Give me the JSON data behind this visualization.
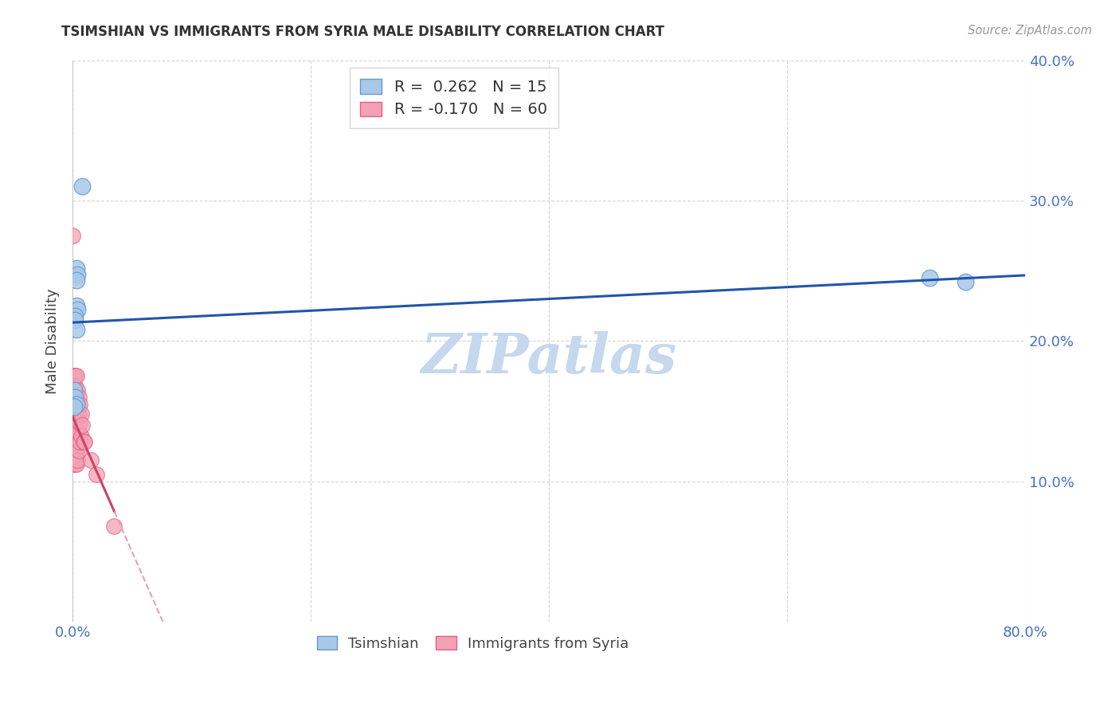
{
  "title": "TSIMSHIAN VS IMMIGRANTS FROM SYRIA MALE DISABILITY CORRELATION CHART",
  "source": "Source: ZipAtlas.com",
  "ylabel": "Male Disability",
  "xlim": [
    0.0,
    0.8
  ],
  "ylim": [
    0.0,
    0.4
  ],
  "x_ticks": [
    0.0,
    0.2,
    0.4,
    0.6,
    0.8
  ],
  "x_tick_labels": [
    "0.0%",
    "",
    "",
    "",
    "80.0%"
  ],
  "y_ticks": [
    0.0,
    0.1,
    0.2,
    0.3,
    0.4
  ],
  "y_right_tick_labels": [
    "",
    "10.0%",
    "20.0%",
    "30.0%",
    "40.0%"
  ],
  "tsimshian_color": "#A8C8E8",
  "tsimshian_edge_color": "#6699CC",
  "syria_color": "#F4A0B5",
  "syria_edge_color": "#E06080",
  "trend_blue_color": "#2255AA",
  "trend_pink_solid_color": "#CC4466",
  "trend_pink_dashed_color": "#E8A0B8",
  "R_tsimshian": 0.262,
  "N_tsimshian": 15,
  "R_syria": -0.17,
  "N_syria": 60,
  "tsimshian_x": [
    0.003,
    0.004,
    0.003,
    0.008,
    0.003,
    0.004,
    0.002,
    0.002,
    0.003,
    0.001,
    0.002,
    0.003,
    0.001,
    0.72,
    0.75
  ],
  "tsimshian_y": [
    0.252,
    0.247,
    0.243,
    0.31,
    0.225,
    0.222,
    0.218,
    0.215,
    0.208,
    0.165,
    0.16,
    0.155,
    0.153,
    0.245,
    0.242
  ],
  "syria_x": [
    0.0,
    0.0,
    0.0,
    0.0,
    0.0,
    0.0,
    0.0,
    0.001,
    0.001,
    0.001,
    0.001,
    0.001,
    0.001,
    0.001,
    0.001,
    0.001,
    0.001,
    0.001,
    0.001,
    0.001,
    0.001,
    0.001,
    0.002,
    0.002,
    0.002,
    0.002,
    0.002,
    0.002,
    0.002,
    0.002,
    0.002,
    0.003,
    0.003,
    0.003,
    0.003,
    0.003,
    0.003,
    0.003,
    0.003,
    0.004,
    0.004,
    0.004,
    0.004,
    0.004,
    0.004,
    0.005,
    0.005,
    0.005,
    0.005,
    0.006,
    0.006,
    0.006,
    0.007,
    0.007,
    0.008,
    0.009,
    0.01,
    0.015,
    0.02,
    0.035
  ],
  "syria_y": [
    0.275,
    0.14,
    0.13,
    0.126,
    0.122,
    0.118,
    0.112,
    0.175,
    0.165,
    0.16,
    0.155,
    0.148,
    0.14,
    0.138,
    0.135,
    0.132,
    0.128,
    0.125,
    0.122,
    0.12,
    0.118,
    0.115,
    0.175,
    0.168,
    0.155,
    0.148,
    0.138,
    0.132,
    0.125,
    0.118,
    0.112,
    0.175,
    0.162,
    0.155,
    0.148,
    0.138,
    0.132,
    0.122,
    0.112,
    0.165,
    0.155,
    0.148,
    0.132,
    0.125,
    0.115,
    0.16,
    0.148,
    0.135,
    0.122,
    0.155,
    0.142,
    0.128,
    0.148,
    0.132,
    0.14,
    0.128,
    0.128,
    0.115,
    0.105,
    0.068
  ],
  "background_color": "#FFFFFF",
  "grid_color": "#CCCCCC",
  "watermark_text": "ZIPatlas",
  "watermark_color": "#C5D8EE",
  "legend_label_tsimshian": "Tsimshian",
  "legend_label_syria": "Immigrants from Syria"
}
